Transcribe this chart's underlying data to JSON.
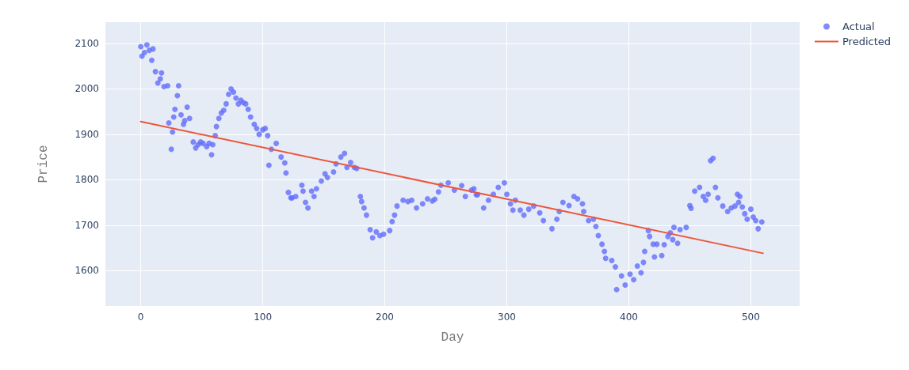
{
  "chart_data": {
    "type": "scatter",
    "xlabel": "Day",
    "ylabel": "Price",
    "xlim": [
      -29,
      540
    ],
    "ylim": [
      1522,
      2147
    ],
    "xticks": [
      0,
      100,
      200,
      300,
      400,
      500
    ],
    "yticks": [
      1600,
      1700,
      1800,
      1900,
      2000,
      2100
    ],
    "grid": true,
    "legend": "top right",
    "marker": "circle",
    "series": [
      {
        "name": "Actual",
        "color": "#636efa",
        "x": [
          0,
          1,
          3,
          5,
          7,
          10,
          9,
          12,
          14,
          16,
          17,
          19,
          22,
          23,
          25,
          26,
          27,
          28,
          30,
          31,
          33,
          35,
          36,
          38,
          40,
          43,
          45,
          47,
          49,
          51,
          54,
          56,
          58,
          59,
          61,
          62,
          64,
          66,
          68,
          70,
          72,
          74,
          76,
          78,
          80,
          82,
          84,
          86,
          88,
          90,
          93,
          95,
          97,
          100,
          102,
          104,
          105,
          107,
          111,
          115,
          118,
          119,
          121,
          123,
          124,
          127,
          132,
          133,
          135,
          137,
          140,
          142,
          144,
          148,
          151,
          153,
          158,
          160,
          164,
          167,
          169,
          172,
          175,
          177,
          180,
          181,
          183,
          185,
          188,
          190,
          193,
          196,
          199,
          204,
          206,
          208,
          210,
          215,
          219,
          222,
          226,
          231,
          235,
          239,
          241,
          244,
          246,
          252,
          257,
          263,
          266,
          271,
          273,
          275,
          276,
          281,
          285,
          289,
          293,
          298,
          300,
          303,
          305,
          307,
          311,
          314,
          318,
          322,
          327,
          330,
          337,
          341,
          343,
          346,
          351,
          355,
          358,
          362,
          363,
          367,
          371,
          373,
          375,
          378,
          380,
          381,
          386,
          389,
          390,
          394,
          397,
          401,
          404,
          407,
          410,
          412,
          413,
          416,
          417,
          420,
          421,
          423,
          427,
          429,
          432,
          434,
          436,
          437,
          440,
          442,
          447,
          450,
          451,
          454,
          458,
          461,
          463,
          465,
          467,
          469,
          471,
          473,
          477,
          481,
          484,
          487,
          489,
          490,
          491,
          493,
          495,
          497,
          500,
          502,
          504,
          506,
          509
        ],
        "values": [
          2093,
          2072,
          2080,
          2097,
          2085,
          2088,
          2063,
          2038,
          2013,
          2022,
          2035,
          2005,
          2007,
          1925,
          1867,
          1905,
          1938,
          1955,
          1985,
          2007,
          1943,
          1922,
          1930,
          1960,
          1935,
          1883,
          1870,
          1877,
          1883,
          1880,
          1873,
          1880,
          1855,
          1877,
          1897,
          1917,
          1935,
          1947,
          1953,
          1967,
          1988,
          2000,
          1993,
          1980,
          1967,
          1975,
          1970,
          1967,
          1955,
          1938,
          1922,
          1913,
          1900,
          1910,
          1913,
          1897,
          1832,
          1867,
          1880,
          1850,
          1837,
          1815,
          1772,
          1760,
          1760,
          1763,
          1788,
          1775,
          1750,
          1738,
          1775,
          1763,
          1780,
          1797,
          1813,
          1805,
          1817,
          1835,
          1850,
          1858,
          1827,
          1838,
          1827,
          1825,
          1763,
          1752,
          1738,
          1722,
          1690,
          1672,
          1685,
          1677,
          1680,
          1688,
          1708,
          1722,
          1742,
          1755,
          1752,
          1755,
          1738,
          1747,
          1758,
          1753,
          1757,
          1773,
          1788,
          1793,
          1777,
          1787,
          1763,
          1777,
          1780,
          1767,
          1767,
          1738,
          1755,
          1768,
          1783,
          1793,
          1768,
          1747,
          1733,
          1755,
          1733,
          1722,
          1735,
          1742,
          1727,
          1710,
          1692,
          1713,
          1730,
          1750,
          1743,
          1763,
          1758,
          1747,
          1730,
          1710,
          1713,
          1697,
          1677,
          1658,
          1642,
          1627,
          1622,
          1608,
          1558,
          1588,
          1568,
          1592,
          1580,
          1610,
          1595,
          1618,
          1642,
          1688,
          1675,
          1658,
          1630,
          1658,
          1633,
          1657,
          1675,
          1683,
          1668,
          1695,
          1660,
          1690,
          1695,
          1743,
          1737,
          1775,
          1783,
          1763,
          1755,
          1768,
          1842,
          1847,
          1783,
          1760,
          1742,
          1730,
          1738,
          1742,
          1768,
          1750,
          1763,
          1740,
          1725,
          1713,
          1735,
          1718,
          1710,
          1692,
          1707
        ]
      },
      {
        "name": "Predicted",
        "type": "line",
        "color": "#ef553b",
        "marker": "none",
        "line_style": "solid",
        "x": [
          0,
          510
        ],
        "values": [
          1928,
          1638
        ]
      }
    ]
  }
}
